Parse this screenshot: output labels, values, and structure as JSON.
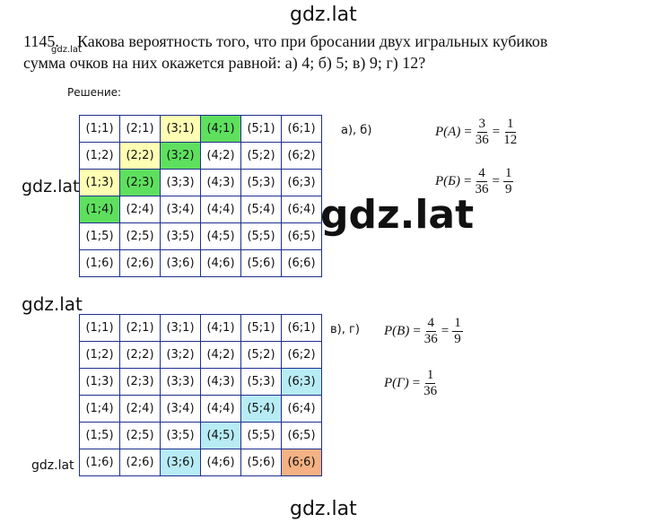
{
  "watermarks": [
    "gdz.lat",
    "gdz.lat",
    "gdz.lat",
    "gdz.lat",
    "gdz.lat",
    "gdz.lat",
    "gdz.lat"
  ],
  "problem": {
    "number": "1145.",
    "line1": "Какова вероятность того, что при бросании двух игральных кубиков",
    "line2": "сумма очков на них окажется равной: а) 4; б) 5; в) 9; г) 12?"
  },
  "solution_label": "Решение:",
  "grids": [
    {
      "rows": [
        [
          "(1;1)",
          "(2;1)",
          {
            "text": "(3;1)",
            "fill": "#ffffb3"
          },
          {
            "text": "(4;1)",
            "fill": "#5ee05e"
          },
          "(5;1)",
          "(6;1)"
        ],
        [
          "(1;2)",
          {
            "text": "(2;2)",
            "fill": "#ffffb3"
          },
          {
            "text": "(3;2)",
            "fill": "#5ee05e"
          },
          "(4;2)",
          "(5;2)",
          "(6;2)"
        ],
        [
          {
            "text": "(1;3)",
            "fill": "#ffffb3"
          },
          {
            "text": "(2;3)",
            "fill": "#5ee05e"
          },
          "(3;3)",
          "(4;3)",
          "(5;3)",
          "(6;3)"
        ],
        [
          {
            "text": "(1;4)",
            "fill": "#5ee05e"
          },
          "(2;4)",
          "(3;4)",
          "(4;4)",
          "(5;4)",
          "(6;4)"
        ],
        [
          "(1;5)",
          "(2;5)",
          "(3;5)",
          "(4;5)",
          "(5;5)",
          "(6;5)"
        ],
        [
          "(1;6)",
          "(2;6)",
          "(3;6)",
          "(4;6)",
          "(5;6)",
          "(6;6)"
        ]
      ]
    },
    {
      "rows": [
        [
          "(1;1)",
          "(2;1)",
          "(3;1)",
          "(4;1)",
          "(5;1)",
          "(6;1)"
        ],
        [
          "(1;2)",
          "(2;2)",
          "(3;2)",
          "(4;2)",
          "(5;2)",
          "(6;2)"
        ],
        [
          "(1;3)",
          "(2;3)",
          "(3;3)",
          "(4;3)",
          "(5;3)",
          {
            "text": "(6;3)",
            "fill": "#b7ecf5"
          }
        ],
        [
          "(1;4)",
          "(2;4)",
          "(3;4)",
          "(4;4)",
          {
            "text": "(5;4)",
            "fill": "#b7ecf5"
          },
          "(6;4)"
        ],
        [
          "(1;5)",
          "(2;5)",
          "(3;5)",
          {
            "text": "(4;5)",
            "fill": "#b7ecf5"
          },
          "(5;5)",
          "(6;5)"
        ],
        [
          "(1;6)",
          "(2;6)",
          {
            "text": "(3;6)",
            "fill": "#b7ecf5"
          },
          "(4;6)",
          "(5;6)",
          {
            "text": "(6;6)",
            "fill": "#f4b183"
          }
        ]
      ]
    }
  ],
  "case_labels": [
    "а), б)",
    "в), г)"
  ],
  "formulas": [
    {
      "parts": [
        "P(A)",
        "=",
        {
          "num": "3",
          "den": "36"
        },
        "=",
        {
          "num": "1",
          "den": "12"
        }
      ]
    },
    {
      "parts": [
        "P(Б)",
        "=",
        {
          "num": "4",
          "den": "36"
        },
        "=",
        {
          "num": "1",
          "den": "9"
        }
      ]
    },
    {
      "parts": [
        "P(B)",
        "=",
        {
          "num": "4",
          "den": "36"
        },
        "=",
        {
          "num": "1",
          "den": "9"
        }
      ]
    },
    {
      "parts": [
        "P(Г)",
        "=",
        {
          "num": "1",
          "den": "36"
        }
      ]
    }
  ]
}
